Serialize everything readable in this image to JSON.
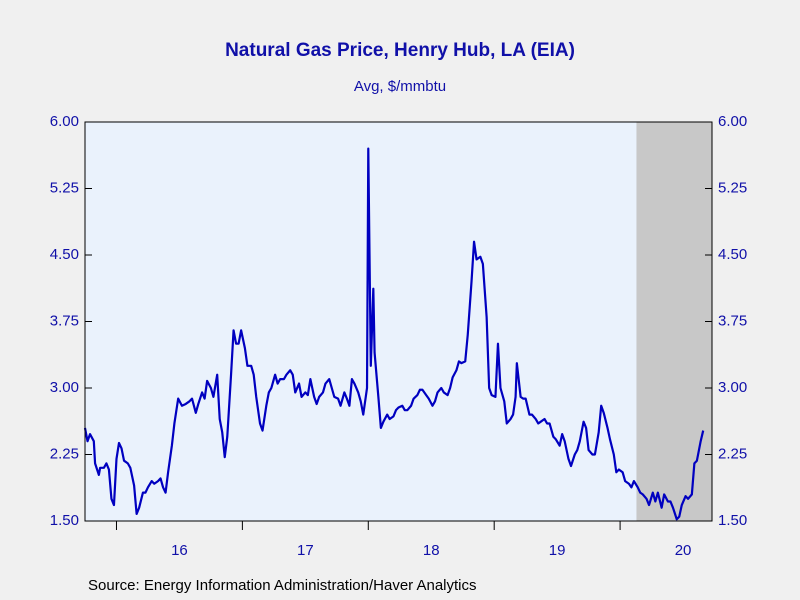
{
  "chart_data": {
    "type": "line",
    "title": "Natural Gas Price, Henry Hub, LA (EIA)",
    "subtitle": "Avg, $/mmbtu",
    "source": "Source:  Energy Information Administration/Haver Analytics",
    "xlim": [
      2015.75,
      2020.73
    ],
    "xticks": [
      {
        "value": 2016,
        "label": "16"
      },
      {
        "value": 2017,
        "label": "17"
      },
      {
        "value": 2018,
        "label": "18"
      },
      {
        "value": 2019,
        "label": "19"
      },
      {
        "value": 2020,
        "label": "20"
      }
    ],
    "ylim": [
      1.5,
      6.0
    ],
    "yticks": [
      {
        "value": 1.5,
        "label": "1.50"
      },
      {
        "value": 2.25,
        "label": "2.25"
      },
      {
        "value": 3.0,
        "label": "3.00"
      },
      {
        "value": 3.75,
        "label": "3.75"
      },
      {
        "value": 4.5,
        "label": "4.50"
      },
      {
        "value": 5.25,
        "label": "5.25"
      },
      {
        "value": 6.0,
        "label": "6.00"
      }
    ],
    "y2lim": [
      1.5,
      6.0
    ],
    "y2ticks": [
      {
        "value": 1.5,
        "label": "1.50"
      },
      {
        "value": 2.25,
        "label": "2.25"
      },
      {
        "value": 3.0,
        "label": "3.00"
      },
      {
        "value": 3.75,
        "label": "3.75"
      },
      {
        "value": 4.5,
        "label": "4.50"
      },
      {
        "value": 5.25,
        "label": "5.25"
      },
      {
        "value": 6.0,
        "label": "6.00"
      }
    ],
    "shaded_x": [
      2020.13,
      2020.73
    ],
    "shade_color": "#c8c8c8",
    "x": [
      2015.75,
      2015.77,
      2015.79,
      2015.82,
      2015.83,
      2015.86,
      2015.87,
      2015.9,
      2015.92,
      2015.94,
      2015.96,
      2015.98,
      2016.0,
      2016.02,
      2016.04,
      2016.06,
      2016.09,
      2016.11,
      2016.14,
      2016.16,
      2016.18,
      2016.21,
      2016.23,
      2016.25,
      2016.28,
      2016.3,
      2016.33,
      2016.35,
      2016.37,
      2016.39,
      2016.41,
      2016.44,
      2016.46,
      2016.49,
      2016.52,
      2016.55,
      2016.58,
      2016.6,
      2016.63,
      2016.65,
      2016.68,
      2016.7,
      2016.72,
      2016.75,
      2016.77,
      2016.8,
      2016.82,
      2016.84,
      2016.86,
      2016.88,
      2016.91,
      2016.93,
      2016.95,
      2016.97,
      2016.99,
      2017.02,
      2017.04,
      2017.07,
      2017.09,
      2017.11,
      2017.14,
      2017.16,
      2017.19,
      2017.21,
      2017.23,
      2017.26,
      2017.28,
      2017.3,
      2017.33,
      2017.35,
      2017.38,
      2017.4,
      2017.42,
      2017.45,
      2017.47,
      2017.5,
      2017.52,
      2017.54,
      2017.57,
      2017.59,
      2017.61,
      2017.64,
      2017.66,
      2017.69,
      2017.71,
      2017.73,
      2017.76,
      2017.78,
      2017.81,
      2017.83,
      2017.85,
      2017.87,
      2017.89,
      2017.92,
      2017.94,
      2017.96,
      2017.99,
      2018.0,
      2018.02,
      2018.04,
      2018.05,
      2018.08,
      2018.1,
      2018.12,
      2018.15,
      2018.17,
      2018.2,
      2018.22,
      2018.24,
      2018.27,
      2018.29,
      2018.31,
      2018.34,
      2018.36,
      2018.39,
      2018.41,
      2018.43,
      2018.46,
      2018.48,
      2018.51,
      2018.53,
      2018.55,
      2018.58,
      2018.6,
      2018.63,
      2018.65,
      2018.67,
      2018.7,
      2018.72,
      2018.74,
      2018.77,
      2018.79,
      2018.82,
      2018.84,
      2018.86,
      2018.89,
      2018.91,
      2018.94,
      2018.96,
      2018.98,
      2019.01,
      2019.03,
      2019.05,
      2019.08,
      2019.1,
      2019.13,
      2019.15,
      2019.17,
      2019.18,
      2019.21,
      2019.23,
      2019.25,
      2019.28,
      2019.3,
      2019.33,
      2019.35,
      2019.37,
      2019.4,
      2019.42,
      2019.44,
      2019.47,
      2019.49,
      2019.52,
      2019.54,
      2019.56,
      2019.59,
      2019.61,
      2019.64,
      2019.66,
      2019.68,
      2019.71,
      2019.73,
      2019.75,
      2019.78,
      2019.8,
      2019.83,
      2019.85,
      2019.87,
      2019.9,
      2019.92,
      2019.95,
      2019.97,
      2019.99,
      2020.02,
      2020.04,
      2020.07,
      2020.09,
      2020.11,
      2020.14,
      2020.16,
      2020.18,
      2020.21,
      2020.23,
      2020.26,
      2020.28,
      2020.3,
      2020.33,
      2020.35,
      2020.38,
      2020.4,
      2020.42,
      2020.45,
      2020.47,
      2020.49,
      2020.52,
      2020.54,
      2020.57,
      2020.59,
      2020.61,
      2020.64,
      2020.66
    ],
    "series": [
      {
        "name": "Natural Gas Price",
        "color": "#0000c0",
        "values": [
          2.55,
          2.4,
          2.48,
          2.4,
          2.15,
          2.02,
          2.1,
          2.1,
          2.15,
          2.08,
          1.75,
          1.68,
          2.2,
          2.38,
          2.32,
          2.18,
          2.15,
          2.1,
          1.9,
          1.58,
          1.65,
          1.82,
          1.82,
          1.88,
          1.95,
          1.92,
          1.95,
          1.98,
          1.88,
          1.82,
          2.05,
          2.35,
          2.6,
          2.88,
          2.8,
          2.82,
          2.85,
          2.88,
          2.72,
          2.82,
          2.95,
          2.88,
          3.08,
          3.0,
          2.9,
          3.15,
          2.65,
          2.5,
          2.22,
          2.45,
          3.15,
          3.65,
          3.5,
          3.5,
          3.65,
          3.45,
          3.25,
          3.25,
          3.15,
          2.9,
          2.6,
          2.52,
          2.8,
          2.95,
          3.0,
          3.15,
          3.05,
          3.1,
          3.1,
          3.15,
          3.2,
          3.15,
          2.95,
          3.05,
          2.9,
          2.95,
          2.92,
          3.1,
          2.9,
          2.82,
          2.9,
          2.95,
          3.05,
          3.1,
          3.0,
          2.9,
          2.88,
          2.8,
          2.95,
          2.88,
          2.8,
          3.1,
          3.05,
          2.95,
          2.85,
          2.7,
          3.0,
          5.7,
          3.25,
          4.12,
          3.4,
          2.9,
          2.55,
          2.62,
          2.7,
          2.65,
          2.68,
          2.75,
          2.78,
          2.8,
          2.75,
          2.75,
          2.8,
          2.88,
          2.92,
          2.98,
          2.98,
          2.92,
          2.88,
          2.8,
          2.85,
          2.95,
          3.0,
          2.95,
          2.92,
          3.0,
          3.12,
          3.2,
          3.3,
          3.28,
          3.3,
          3.6,
          4.2,
          4.65,
          4.45,
          4.48,
          4.4,
          3.8,
          3.0,
          2.92,
          2.9,
          3.5,
          3.0,
          2.85,
          2.6,
          2.65,
          2.7,
          2.9,
          3.28,
          2.9,
          2.88,
          2.88,
          2.7,
          2.7,
          2.65,
          2.6,
          2.62,
          2.65,
          2.6,
          2.6,
          2.45,
          2.42,
          2.35,
          2.48,
          2.4,
          2.2,
          2.12,
          2.25,
          2.3,
          2.4,
          2.62,
          2.55,
          2.3,
          2.25,
          2.25,
          2.5,
          2.8,
          2.72,
          2.55,
          2.42,
          2.25,
          2.05,
          2.08,
          2.05,
          1.95,
          1.92,
          1.88,
          1.95,
          1.88,
          1.82,
          1.8,
          1.75,
          1.68,
          1.82,
          1.72,
          1.82,
          1.65,
          1.8,
          1.72,
          1.72,
          1.65,
          1.52,
          1.55,
          1.68,
          1.78,
          1.75,
          1.8,
          2.15,
          2.18,
          2.4,
          2.52
        ]
      }
    ]
  }
}
